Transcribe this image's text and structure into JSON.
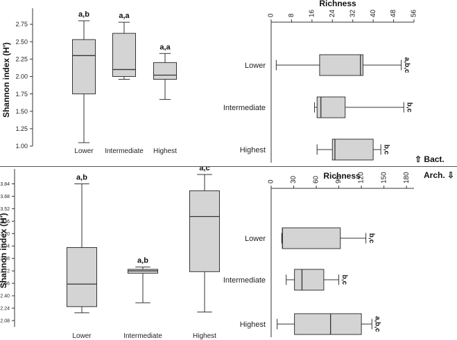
{
  "markers": {
    "bacteria": "Bact.",
    "archaea": "Arch.",
    "up_arrow": "⇧",
    "down_arrow": "⇩"
  },
  "colors": {
    "box_fill": "#d4d4d4",
    "stroke": "#333333",
    "background": "#ffffff"
  },
  "chart_data": [
    {
      "type": "box",
      "panel": "bacteria-shannon",
      "ylabel": "Shannon index (H')",
      "xlabel": "",
      "categories": [
        "Lower",
        "Intermediate",
        "Highest"
      ],
      "ylim": [
        1.0,
        2.9
      ],
      "yticks": [
        "1.00",
        "1.25",
        "1.50",
        "1.75",
        "2.00",
        "2.25",
        "2.50",
        "2.75"
      ],
      "boxes": [
        {
          "category": "Lower",
          "min": 1.05,
          "q1": 1.75,
          "median": 2.3,
          "q3": 2.53,
          "max": 2.8,
          "label": "a,b"
        },
        {
          "category": "Intermediate",
          "min": 1.96,
          "q1": 2.0,
          "median": 2.1,
          "q3": 2.62,
          "max": 2.78,
          "label": "a,a"
        },
        {
          "category": "Highest",
          "min": 1.67,
          "q1": 1.96,
          "median": 2.02,
          "q3": 2.2,
          "max": 2.33,
          "label": "a,a"
        }
      ]
    },
    {
      "type": "box",
      "panel": "bacteria-richness",
      "orientation": "horizontal",
      "title": "Richness",
      "categories": [
        "Lower",
        "Intermediate",
        "Highest"
      ],
      "xlim": [
        0,
        56
      ],
      "xticks": [
        "0",
        "8",
        "16",
        "24",
        "32",
        "40",
        "48",
        "56"
      ],
      "boxes": [
        {
          "category": "Lower",
          "min": 2,
          "q1": 19,
          "median": 35,
          "q3": 36,
          "max": 51,
          "label": "a,b,c"
        },
        {
          "category": "Intermediate",
          "min": 17,
          "q1": 18,
          "median": 19.5,
          "q3": 29,
          "max": 52,
          "label": "b,c"
        },
        {
          "category": "Highest",
          "min": 18,
          "q1": 24,
          "median": 25,
          "q3": 40,
          "max": 43,
          "label": "b,c"
        }
      ]
    },
    {
      "type": "box",
      "panel": "archaea-shannon",
      "ylabel": "Shannon index (H')",
      "xlabel": "",
      "categories": [
        "Lower",
        "Intermediate",
        "Highest"
      ],
      "ylim": [
        2.0,
        3.96
      ],
      "yticks": [
        "2.08",
        "2.24",
        "2.40",
        "2.56",
        "2.72",
        "2.88",
        "3.04",
        "3.20",
        "3.36",
        "3.52",
        "3.68",
        "3.84"
      ],
      "boxes": [
        {
          "category": "Lower",
          "min": 2.18,
          "q1": 2.26,
          "median": 2.55,
          "q3": 3.02,
          "max": 3.84,
          "label": "a,b"
        },
        {
          "category": "Intermediate",
          "min": 2.31,
          "q1": 2.69,
          "median": 2.72,
          "q3": 2.74,
          "max": 2.77,
          "label": "a,b"
        },
        {
          "category": "Highest",
          "min": 2.19,
          "q1": 2.71,
          "median": 3.42,
          "q3": 3.75,
          "max": 3.96,
          "label": "a,c"
        }
      ]
    },
    {
      "type": "box",
      "panel": "archaea-richness",
      "orientation": "horizontal",
      "title": "Richness",
      "categories": [
        "Lower",
        "Intermediate",
        "Highest"
      ],
      "xlim": [
        0,
        190
      ],
      "xticks": [
        "0",
        "30",
        "60",
        "90",
        "120",
        "150",
        "180"
      ],
      "boxes": [
        {
          "category": "Lower",
          "min": 14,
          "q1": 15,
          "median": 15,
          "q3": 92,
          "max": 126,
          "label": "b,c"
        },
        {
          "category": "Intermediate",
          "min": 20,
          "q1": 31,
          "median": 41,
          "q3": 70,
          "max": 90,
          "label": "b,c"
        },
        {
          "category": "Highest",
          "min": 8,
          "q1": 31,
          "median": 79,
          "q3": 120,
          "max": 134,
          "label": "a,b,c"
        }
      ]
    }
  ]
}
